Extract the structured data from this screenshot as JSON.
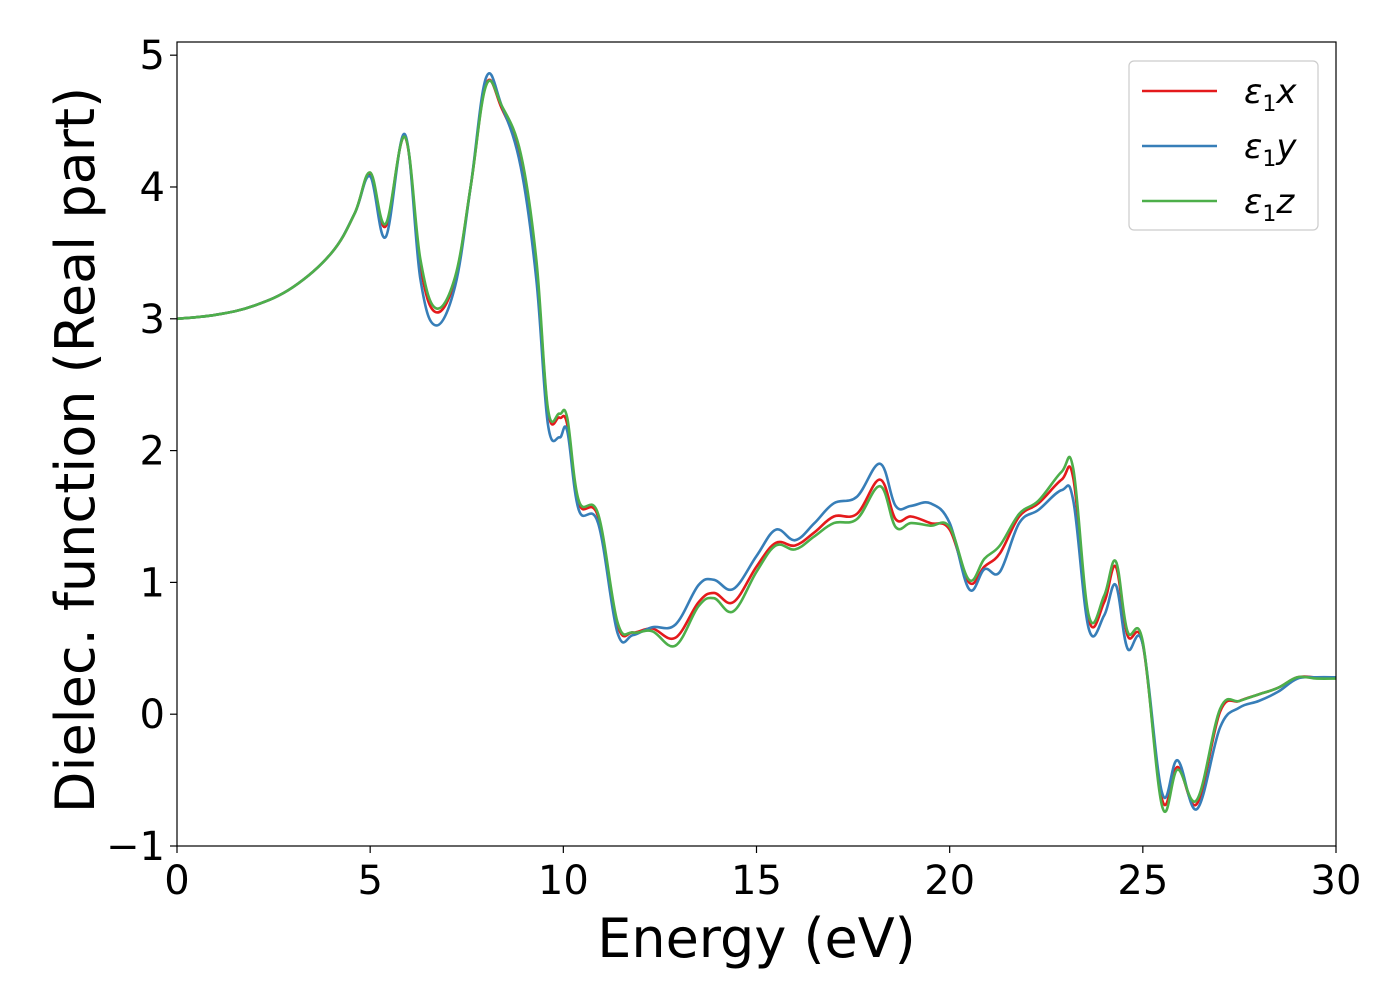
{
  "chart_data": {
    "type": "line",
    "xlabel": "Energy (eV)",
    "ylabel": "Dielec. function (Real part)",
    "xlim": [
      0,
      30
    ],
    "ylim": [
      -1,
      5.1
    ],
    "xticks": [
      0,
      5,
      10,
      15,
      20,
      25,
      30
    ],
    "xtick_labels": [
      "0",
      "5",
      "10",
      "15",
      "20",
      "25",
      "30"
    ],
    "yticks": [
      -1,
      0,
      1,
      2,
      3,
      4,
      5
    ],
    "ytick_labels": [
      "−1",
      "0",
      "1",
      "2",
      "3",
      "4",
      "5"
    ],
    "grid": false,
    "legend_position": "top-right",
    "series": [
      {
        "name": "ε1x",
        "legend_base": "ε",
        "legend_sub": "1",
        "legend_tail": "x",
        "color": "#e41a1c",
        "x": [
          0,
          1,
          2,
          3,
          4,
          4.6,
          5.0,
          5.4,
          5.9,
          6.3,
          6.7,
          7.2,
          7.6,
          8.0,
          8.4,
          8.9,
          9.3,
          9.6,
          9.9,
          10.1,
          10.4,
          10.9,
          11.4,
          11.8,
          12.3,
          12.9,
          13.5,
          13.9,
          14.4,
          15.0,
          15.5,
          16.0,
          16.5,
          17.0,
          17.6,
          18.2,
          18.6,
          19.0,
          19.5,
          20.0,
          20.5,
          20.9,
          21.3,
          21.8,
          22.3,
          22.9,
          23.2,
          23.6,
          24.0,
          24.3,
          24.6,
          25.0,
          25.5,
          25.9,
          26.4,
          27.0,
          27.5,
          28.0,
          28.5,
          29.0,
          29.5,
          30.0
        ],
        "y": [
          3.0,
          3.03,
          3.1,
          3.24,
          3.5,
          3.8,
          4.1,
          3.7,
          4.38,
          3.4,
          3.05,
          3.3,
          4.0,
          4.78,
          4.6,
          4.2,
          3.4,
          2.3,
          2.25,
          2.2,
          1.6,
          1.5,
          0.68,
          0.62,
          0.65,
          0.58,
          0.85,
          0.92,
          0.85,
          1.12,
          1.3,
          1.28,
          1.38,
          1.5,
          1.52,
          1.78,
          1.48,
          1.5,
          1.45,
          1.4,
          1.0,
          1.12,
          1.22,
          1.5,
          1.6,
          1.78,
          1.79,
          0.72,
          0.85,
          1.12,
          0.6,
          0.53,
          -0.65,
          -0.4,
          -0.68,
          0.02,
          0.1,
          0.15,
          0.2,
          0.28,
          0.28,
          0.28
        ]
      },
      {
        "name": "ε1y",
        "legend_base": "ε",
        "legend_sub": "1",
        "legend_tail": "y",
        "color": "#377eb8",
        "x": [
          0,
          1,
          2,
          3,
          4,
          4.6,
          5.0,
          5.4,
          5.9,
          6.3,
          6.7,
          7.2,
          7.6,
          8.0,
          8.4,
          8.9,
          9.3,
          9.6,
          9.9,
          10.1,
          10.4,
          10.9,
          11.4,
          11.8,
          12.3,
          12.9,
          13.5,
          13.9,
          14.4,
          15.0,
          15.5,
          16.0,
          16.5,
          17.0,
          17.6,
          18.2,
          18.6,
          19.0,
          19.5,
          20.0,
          20.5,
          20.9,
          21.3,
          21.8,
          22.3,
          22.9,
          23.2,
          23.6,
          24.0,
          24.3,
          24.6,
          25.0,
          25.5,
          25.9,
          26.4,
          27.0,
          27.5,
          28.0,
          28.5,
          29.0,
          29.5,
          30.0
        ],
        "y": [
          3.0,
          3.03,
          3.1,
          3.24,
          3.5,
          3.8,
          4.08,
          3.62,
          4.4,
          3.3,
          2.95,
          3.25,
          4.0,
          4.83,
          4.62,
          4.15,
          3.3,
          2.2,
          2.1,
          2.15,
          1.55,
          1.45,
          0.62,
          0.6,
          0.66,
          0.68,
          0.98,
          1.02,
          0.95,
          1.2,
          1.4,
          1.32,
          1.45,
          1.6,
          1.65,
          1.9,
          1.58,
          1.58,
          1.6,
          1.45,
          0.95,
          1.1,
          1.08,
          1.45,
          1.55,
          1.7,
          1.62,
          0.65,
          0.75,
          0.98,
          0.5,
          0.53,
          -0.6,
          -0.35,
          -0.72,
          -0.1,
          0.05,
          0.1,
          0.17,
          0.27,
          0.28,
          0.28
        ]
      },
      {
        "name": "ε1z",
        "legend_base": "ε",
        "legend_sub": "1",
        "legend_tail": "z",
        "color": "#4daf4a",
        "x": [
          0,
          1,
          2,
          3,
          4,
          4.6,
          5.0,
          5.4,
          5.9,
          6.3,
          6.7,
          7.2,
          7.6,
          8.0,
          8.4,
          8.9,
          9.3,
          9.6,
          9.9,
          10.1,
          10.4,
          10.9,
          11.4,
          11.8,
          12.3,
          12.9,
          13.5,
          13.9,
          14.4,
          15.0,
          15.5,
          16.0,
          16.5,
          17.0,
          17.6,
          18.2,
          18.6,
          19.0,
          19.5,
          20.0,
          20.5,
          20.9,
          21.3,
          21.8,
          22.3,
          22.9,
          23.2,
          23.6,
          24.0,
          24.3,
          24.6,
          25.0,
          25.5,
          25.9,
          26.4,
          27.0,
          27.5,
          28.0,
          28.5,
          29.0,
          29.5,
          30.0
        ],
        "y": [
          3.0,
          3.03,
          3.1,
          3.24,
          3.5,
          3.8,
          4.11,
          3.72,
          4.38,
          3.45,
          3.08,
          3.32,
          4.0,
          4.77,
          4.62,
          4.25,
          3.45,
          2.32,
          2.28,
          2.25,
          1.62,
          1.52,
          0.7,
          0.62,
          0.63,
          0.52,
          0.82,
          0.88,
          0.78,
          1.08,
          1.28,
          1.25,
          1.35,
          1.45,
          1.48,
          1.73,
          1.42,
          1.45,
          1.43,
          1.42,
          1.02,
          1.18,
          1.28,
          1.52,
          1.62,
          1.84,
          1.86,
          0.75,
          0.9,
          1.16,
          0.63,
          0.55,
          -0.7,
          -0.42,
          -0.65,
          0.04,
          0.1,
          0.15,
          0.2,
          0.28,
          0.27,
          0.27
        ]
      }
    ]
  }
}
